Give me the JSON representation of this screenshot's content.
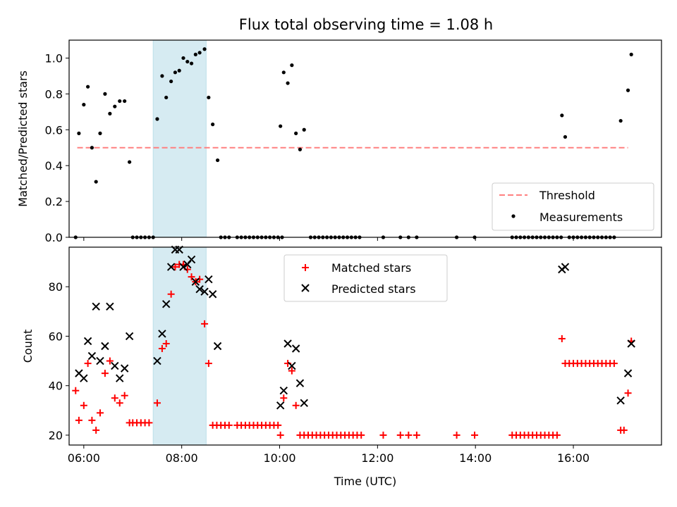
{
  "figure": {
    "title": "Flux total observing time = 1.08 h"
  },
  "chart_data": [
    {
      "type": "scatter",
      "panel": "top",
      "ylabel": "Matched/Predicted stars",
      "xlim": [
        "05:42",
        "17:48"
      ],
      "ylim": [
        0,
        1.1
      ],
      "yticks": [
        0,
        0.2,
        0.4,
        0.6,
        0.8,
        1.0
      ],
      "ytick_labels": [
        "0.0",
        "0.2",
        "0.4",
        "0.6",
        "0.8",
        "1.0"
      ],
      "highlight_span": {
        "start": "07:25",
        "end": "08:30",
        "color": "#add8e6"
      },
      "threshold": {
        "name": "Threshold",
        "value": 0.5,
        "start": "05:52",
        "end": "17:07",
        "color": "#ff8080",
        "style": "dashed"
      },
      "legend": {
        "placement": "lower right",
        "entries": [
          "Threshold",
          "Measurements"
        ]
      },
      "series": [
        {
          "name": "Measurements",
          "marker": "dot",
          "color": "#000000",
          "points": [
            [
              "05:50",
              0
            ],
            [
              "05:54",
              0.58
            ],
            [
              "06:00",
              0.74
            ],
            [
              "06:05",
              0.84
            ],
            [
              "06:10",
              0.5
            ],
            [
              "06:15",
              0.31
            ],
            [
              "06:20",
              0.58
            ],
            [
              "06:26",
              0.8
            ],
            [
              "06:32",
              0.69
            ],
            [
              "06:38",
              0.73
            ],
            [
              "06:44",
              0.76
            ],
            [
              "06:50",
              0.76
            ],
            [
              "06:56",
              0.42
            ],
            [
              "07:00",
              0
            ],
            [
              "07:05",
              0
            ],
            [
              "07:10",
              0
            ],
            [
              "07:15",
              0
            ],
            [
              "07:20",
              0
            ],
            [
              "07:25",
              0
            ],
            [
              "07:30",
              0.66
            ],
            [
              "07:36",
              0.9
            ],
            [
              "07:41",
              0.78
            ],
            [
              "07:47",
              0.87
            ],
            [
              "07:52",
              0.92
            ],
            [
              "07:57",
              0.93
            ],
            [
              "08:02",
              1.0
            ],
            [
              "08:07",
              0.98
            ],
            [
              "08:12",
              0.97
            ],
            [
              "08:17",
              1.02
            ],
            [
              "08:22",
              1.03
            ],
            [
              "08:28",
              1.05
            ],
            [
              "08:33",
              0.78
            ],
            [
              "08:38",
              0.63
            ],
            [
              "08:44",
              0.43
            ],
            [
              "08:48",
              0
            ],
            [
              "08:53",
              0
            ],
            [
              "08:58",
              0
            ],
            [
              "09:08",
              0
            ],
            [
              "09:13",
              0
            ],
            [
              "09:18",
              0
            ],
            [
              "09:23",
              0
            ],
            [
              "09:28",
              0
            ],
            [
              "09:33",
              0
            ],
            [
              "09:38",
              0
            ],
            [
              "09:43",
              0
            ],
            [
              "09:48",
              0
            ],
            [
              "09:53",
              0
            ],
            [
              "09:58",
              0
            ],
            [
              "10:03",
              0
            ],
            [
              "10:01",
              0.62
            ],
            [
              "10:05",
              0.92
            ],
            [
              "10:10",
              0.86
            ],
            [
              "10:15",
              0.96
            ],
            [
              "10:20",
              0.58
            ],
            [
              "10:25",
              0.49
            ],
            [
              "10:30",
              0.6
            ],
            [
              "10:38",
              0
            ],
            [
              "10:43",
              0
            ],
            [
              "10:48",
              0
            ],
            [
              "10:53",
              0
            ],
            [
              "10:58",
              0
            ],
            [
              "11:03",
              0
            ],
            [
              "11:08",
              0
            ],
            [
              "11:13",
              0
            ],
            [
              "11:18",
              0
            ],
            [
              "11:23",
              0
            ],
            [
              "11:28",
              0
            ],
            [
              "11:33",
              0
            ],
            [
              "11:38",
              0
            ],
            [
              "12:07",
              0
            ],
            [
              "12:28",
              0
            ],
            [
              "12:38",
              0
            ],
            [
              "12:48",
              0
            ],
            [
              "13:37",
              0
            ],
            [
              "13:59",
              0
            ],
            [
              "14:45",
              0
            ],
            [
              "14:50",
              0
            ],
            [
              "14:55",
              0
            ],
            [
              "15:00",
              0
            ],
            [
              "15:05",
              0
            ],
            [
              "15:10",
              0
            ],
            [
              "15:15",
              0
            ],
            [
              "15:20",
              0
            ],
            [
              "15:25",
              0
            ],
            [
              "15:30",
              0
            ],
            [
              "15:35",
              0
            ],
            [
              "15:40",
              0
            ],
            [
              "15:45",
              0
            ],
            [
              "15:46",
              0.68
            ],
            [
              "15:50",
              0.56
            ],
            [
              "15:55",
              0
            ],
            [
              "16:00",
              0
            ],
            [
              "16:05",
              0
            ],
            [
              "16:10",
              0
            ],
            [
              "16:15",
              0
            ],
            [
              "16:20",
              0
            ],
            [
              "16:25",
              0
            ],
            [
              "16:30",
              0
            ],
            [
              "16:35",
              0
            ],
            [
              "16:40",
              0
            ],
            [
              "16:45",
              0
            ],
            [
              "16:50",
              0
            ],
            [
              "16:58",
              0.65
            ],
            [
              "17:07",
              0.82
            ],
            [
              "17:11",
              1.02
            ]
          ]
        }
      ]
    },
    {
      "type": "scatter",
      "panel": "bottom",
      "ylabel": "Count",
      "xlabel": "Time (UTC)",
      "xlim": [
        "05:42",
        "17:48"
      ],
      "ylim": [
        16,
        96
      ],
      "yticks": [
        20,
        40,
        60,
        80
      ],
      "ytick_labels": [
        "20",
        "40",
        "60",
        "80"
      ],
      "xticks": [
        "06:00",
        "08:00",
        "10:00",
        "12:00",
        "14:00",
        "16:00"
      ],
      "xtick_labels": [
        "06:00",
        "08:00",
        "10:00",
        "12:00",
        "14:00",
        "16:00"
      ],
      "highlight_span": {
        "start": "07:25",
        "end": "08:30",
        "color": "#add8e6"
      },
      "legend": {
        "placement": "upper center",
        "entries": [
          "Matched stars",
          "Predicted stars"
        ]
      },
      "series": [
        {
          "name": "Matched stars",
          "marker": "plus",
          "color": "#ff0000",
          "points": [
            [
              "05:50",
              38
            ],
            [
              "05:54",
              26
            ],
            [
              "06:00",
              32
            ],
            [
              "06:05",
              49
            ],
            [
              "06:10",
              26
            ],
            [
              "06:15",
              22
            ],
            [
              "06:20",
              29
            ],
            [
              "06:26",
              45
            ],
            [
              "06:32",
              50
            ],
            [
              "06:38",
              35
            ],
            [
              "06:44",
              33
            ],
            [
              "06:50",
              36
            ],
            [
              "06:56",
              25
            ],
            [
              "07:00",
              25
            ],
            [
              "07:05",
              25
            ],
            [
              "07:10",
              25
            ],
            [
              "07:15",
              25
            ],
            [
              "07:20",
              25
            ],
            [
              "07:30",
              33
            ],
            [
              "07:36",
              55
            ],
            [
              "07:41",
              57
            ],
            [
              "07:47",
              77
            ],
            [
              "07:52",
              88
            ],
            [
              "07:57",
              89
            ],
            [
              "08:02",
              89
            ],
            [
              "08:07",
              87
            ],
            [
              "08:12",
              84
            ],
            [
              "08:17",
              82
            ],
            [
              "08:22",
              83
            ],
            [
              "08:28",
              65
            ],
            [
              "08:33",
              49
            ],
            [
              "08:38",
              24
            ],
            [
              "08:43",
              24
            ],
            [
              "08:48",
              24
            ],
            [
              "08:53",
              24
            ],
            [
              "08:58",
              24
            ],
            [
              "09:08",
              24
            ],
            [
              "09:13",
              24
            ],
            [
              "09:18",
              24
            ],
            [
              "09:23",
              24
            ],
            [
              "09:28",
              24
            ],
            [
              "09:33",
              24
            ],
            [
              "09:38",
              24
            ],
            [
              "09:43",
              24
            ],
            [
              "09:48",
              24
            ],
            [
              "09:53",
              24
            ],
            [
              "09:58",
              24
            ],
            [
              "10:01",
              20
            ],
            [
              "10:05",
              35
            ],
            [
              "10:10",
              49
            ],
            [
              "10:15",
              46
            ],
            [
              "10:20",
              32
            ],
            [
              "10:25",
              20
            ],
            [
              "10:30",
              20
            ],
            [
              "10:35",
              20
            ],
            [
              "10:40",
              20
            ],
            [
              "10:45",
              20
            ],
            [
              "10:50",
              20
            ],
            [
              "10:55",
              20
            ],
            [
              "11:00",
              20
            ],
            [
              "11:05",
              20
            ],
            [
              "11:10",
              20
            ],
            [
              "11:15",
              20
            ],
            [
              "11:20",
              20
            ],
            [
              "11:25",
              20
            ],
            [
              "11:30",
              20
            ],
            [
              "11:35",
              20
            ],
            [
              "11:40",
              20
            ],
            [
              "12:07",
              20
            ],
            [
              "12:28",
              20
            ],
            [
              "12:38",
              20
            ],
            [
              "12:48",
              20
            ],
            [
              "13:37",
              20
            ],
            [
              "13:59",
              20
            ],
            [
              "14:45",
              20
            ],
            [
              "14:50",
              20
            ],
            [
              "14:55",
              20
            ],
            [
              "15:00",
              20
            ],
            [
              "15:05",
              20
            ],
            [
              "15:10",
              20
            ],
            [
              "15:15",
              20
            ],
            [
              "15:20",
              20
            ],
            [
              "15:25",
              20
            ],
            [
              "15:30",
              20
            ],
            [
              "15:35",
              20
            ],
            [
              "15:40",
              20
            ],
            [
              "15:46",
              59
            ],
            [
              "15:50",
              49
            ],
            [
              "15:55",
              49
            ],
            [
              "16:00",
              49
            ],
            [
              "16:05",
              49
            ],
            [
              "16:10",
              49
            ],
            [
              "16:15",
              49
            ],
            [
              "16:20",
              49
            ],
            [
              "16:25",
              49
            ],
            [
              "16:30",
              49
            ],
            [
              "16:35",
              49
            ],
            [
              "16:40",
              49
            ],
            [
              "16:45",
              49
            ],
            [
              "16:50",
              49
            ],
            [
              "16:58",
              22
            ],
            [
              "17:02",
              22
            ],
            [
              "17:07",
              37
            ],
            [
              "17:11",
              58
            ]
          ]
        },
        {
          "name": "Predicted stars",
          "marker": "x",
          "color": "#000000",
          "points": [
            [
              "05:54",
              45
            ],
            [
              "06:00",
              43
            ],
            [
              "06:05",
              58
            ],
            [
              "06:10",
              52
            ],
            [
              "06:15",
              72
            ],
            [
              "06:20",
              50
            ],
            [
              "06:26",
              56
            ],
            [
              "06:32",
              72
            ],
            [
              "06:38",
              48
            ],
            [
              "06:44",
              43
            ],
            [
              "06:50",
              47
            ],
            [
              "06:56",
              60
            ],
            [
              "07:30",
              50
            ],
            [
              "07:36",
              61
            ],
            [
              "07:41",
              73
            ],
            [
              "07:47",
              88
            ],
            [
              "07:52",
              95
            ],
            [
              "07:57",
              95
            ],
            [
              "08:02",
              88
            ],
            [
              "08:07",
              89
            ],
            [
              "08:12",
              91
            ],
            [
              "08:17",
              82
            ],
            [
              "08:22",
              79
            ],
            [
              "08:28",
              78
            ],
            [
              "08:33",
              83
            ],
            [
              "08:38",
              77
            ],
            [
              "08:44",
              56
            ],
            [
              "10:01",
              32
            ],
            [
              "10:05",
              38
            ],
            [
              "10:10",
              57
            ],
            [
              "10:15",
              48
            ],
            [
              "10:20",
              55
            ],
            [
              "10:25",
              41
            ],
            [
              "10:30",
              33
            ],
            [
              "15:46",
              87
            ],
            [
              "15:50",
              88
            ],
            [
              "16:58",
              34
            ],
            [
              "17:07",
              45
            ],
            [
              "17:11",
              57
            ]
          ]
        }
      ]
    }
  ]
}
